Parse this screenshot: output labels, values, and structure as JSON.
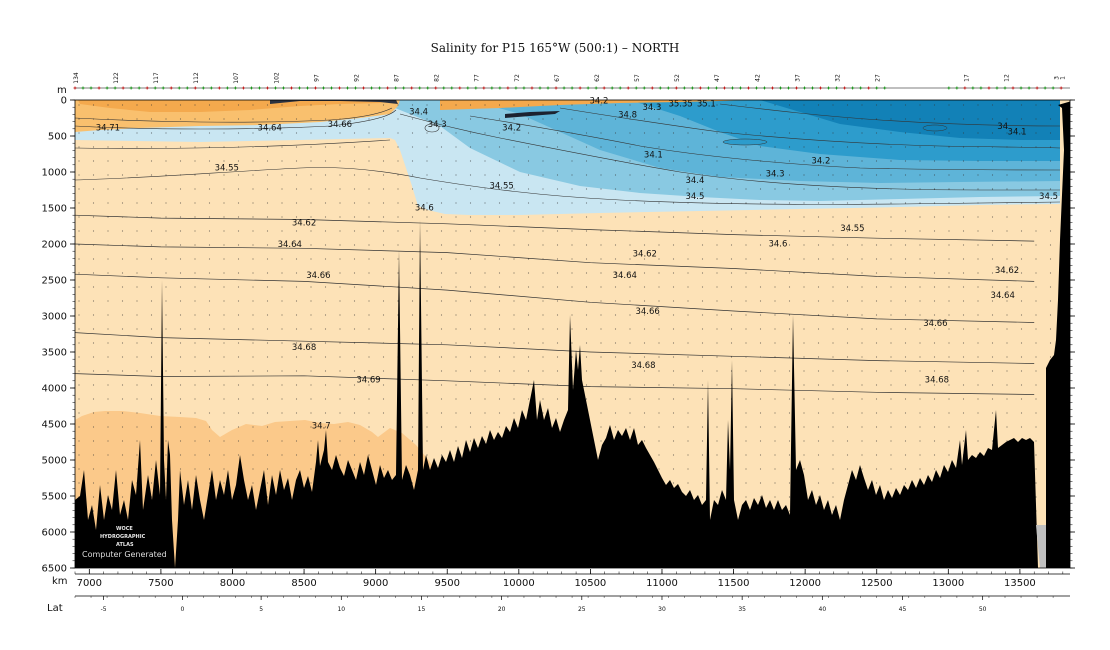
{
  "chart_data": {
    "type": "heatmap",
    "title": "Salinity for P15 165°W (500:1) – NORTH",
    "y_unit": "m",
    "x_unit": "km",
    "lat_label": "Lat",
    "xlim": [
      6900,
      13850
    ],
    "ylim": [
      0,
      6500
    ],
    "x_ticks": [
      7000,
      7500,
      8000,
      8500,
      9000,
      9500,
      10000,
      10500,
      11000,
      11500,
      12000,
      12500,
      13000,
      13500
    ],
    "y_ticks": [
      0,
      500,
      1000,
      1500,
      2000,
      2500,
      3000,
      3500,
      4000,
      4500,
      5000,
      5500,
      6000,
      6500
    ],
    "lat_ticks": [
      {
        "label": "-5",
        "km": 7100
      },
      {
        "label": "0",
        "km": 7650
      },
      {
        "label": "5",
        "km": 8200
      },
      {
        "label": "10",
        "km": 8760
      },
      {
        "label": "15",
        "km": 9320
      },
      {
        "label": "20",
        "km": 9880
      },
      {
        "label": "25",
        "km": 10440
      },
      {
        "label": "30",
        "km": 11000
      },
      {
        "label": "35",
        "km": 11560
      },
      {
        "label": "40",
        "km": 12120
      },
      {
        "label": "45",
        "km": 12680
      },
      {
        "label": "50",
        "km": 13240
      }
    ],
    "station_labels": [
      {
        "label": "134",
        "km": 6920
      },
      {
        "label": "122",
        "km": 7200
      },
      {
        "label": "117",
        "km": 7480
      },
      {
        "label": "112",
        "km": 7760
      },
      {
        "label": "107",
        "km": 8040
      },
      {
        "label": "102",
        "km": 8320
      },
      {
        "label": "97",
        "km": 8600
      },
      {
        "label": "92",
        "km": 8880
      },
      {
        "label": "87",
        "km": 9160
      },
      {
        "label": "82",
        "km": 9440
      },
      {
        "label": "77",
        "km": 9720
      },
      {
        "label": "72",
        "km": 10000
      },
      {
        "label": "67",
        "km": 10280
      },
      {
        "label": "62",
        "km": 10560
      },
      {
        "label": "57",
        "km": 10840
      },
      {
        "label": "52",
        "km": 11120
      },
      {
        "label": "47",
        "km": 11400
      },
      {
        "label": "42",
        "km": 11680
      },
      {
        "label": "37",
        "km": 11960
      },
      {
        "label": "32",
        "km": 12240
      },
      {
        "label": "27",
        "km": 12520
      },
      {
        "label": "17",
        "km": 13140
      },
      {
        "label": "12",
        "km": 13420
      },
      {
        "label": "3",
        "km": 13770
      },
      {
        "label": "1",
        "km": 13810
      }
    ],
    "layers": [
      {
        "color": "#fbc98a",
        "depth": [
          [
            6900,
            4430
          ],
          [
            7200,
            4400
          ],
          [
            7600,
            4500
          ],
          [
            8200,
            4480
          ],
          [
            8800,
            4560
          ],
          [
            9200,
            4700
          ],
          [
            9400,
            5000
          ]
        ]
      },
      {
        "color": "#f9c06e",
        "depth": [
          [
            6900,
            0
          ],
          [
            8500,
            0
          ],
          [
            9100,
            0
          ]
        ]
      },
      {
        "color": "#c9e6f2",
        "depth": [
          [
            6900,
            530
          ],
          [
            9100,
            520
          ],
          [
            9200,
            1480
          ],
          [
            13700,
            1400
          ]
        ]
      },
      {
        "color": "#89c9e2",
        "depth": [
          [
            9300,
            0
          ],
          [
            9700,
            500
          ],
          [
            13700,
            1300
          ]
        ]
      },
      {
        "color": "#5eb4d8",
        "depth": [
          [
            10300,
            0
          ],
          [
            11500,
            900
          ],
          [
            13700,
            1050
          ]
        ]
      },
      {
        "color": "#2d9ccc",
        "depth": [
          [
            11400,
            0
          ],
          [
            12300,
            600
          ],
          [
            13700,
            800
          ]
        ]
      },
      {
        "color": "#1281b7",
        "depth": [
          [
            12000,
            0
          ],
          [
            13000,
            300
          ],
          [
            13700,
            500
          ]
        ]
      }
    ],
    "contours": [
      {
        "value": 34.62,
        "points": [
          [
            6900,
            1600
          ],
          [
            7500,
            1640
          ],
          [
            8500,
            1660
          ],
          [
            9500,
            1720
          ],
          [
            10500,
            1800
          ],
          [
            11500,
            1870
          ],
          [
            12500,
            1920
          ],
          [
            13600,
            1960
          ]
        ]
      },
      {
        "value": 34.64,
        "points": [
          [
            6900,
            2000
          ],
          [
            7500,
            2040
          ],
          [
            8500,
            2060
          ],
          [
            9500,
            2120
          ],
          [
            10500,
            2260
          ],
          [
            11500,
            2340
          ],
          [
            12500,
            2450
          ],
          [
            13600,
            2520
          ]
        ]
      },
      {
        "value": 34.66,
        "points": [
          [
            6900,
            2420
          ],
          [
            7500,
            2470
          ],
          [
            8500,
            2520
          ],
          [
            9500,
            2640
          ],
          [
            10500,
            2810
          ],
          [
            11500,
            2930
          ],
          [
            12500,
            3040
          ],
          [
            13600,
            3090
          ]
        ]
      },
      {
        "value": 34.68,
        "points": [
          [
            6900,
            3230
          ],
          [
            7500,
            3300
          ],
          [
            8500,
            3350
          ],
          [
            9500,
            3400
          ],
          [
            10500,
            3500
          ],
          [
            11500,
            3560
          ],
          [
            12500,
            3620
          ],
          [
            13600,
            3660
          ]
        ]
      },
      {
        "value": 34.69,
        "points": [
          [
            6900,
            3800
          ],
          [
            7500,
            3840
          ],
          [
            8500,
            3830
          ],
          [
            9500,
            3900
          ],
          [
            10500,
            3980
          ],
          [
            11500,
            4010
          ],
          [
            12500,
            4060
          ],
          [
            13600,
            4090
          ]
        ]
      }
    ],
    "labels": [
      {
        "text": "34.71",
        "km": 7130,
        "depth": 380
      },
      {
        "text": "34.64",
        "km": 8260,
        "depth": 380
      },
      {
        "text": "34.66",
        "km": 8750,
        "depth": 330
      },
      {
        "text": "34.4",
        "km": 9300,
        "depth": 160
      },
      {
        "text": "34.3",
        "km": 9430,
        "depth": 330
      },
      {
        "text": "34.2",
        "km": 9950,
        "depth": 380
      },
      {
        "text": "34.2",
        "km": 10560,
        "depth": 10
      },
      {
        "text": "34.8",
        "km": 10760,
        "depth": 200
      },
      {
        "text": "34.3",
        "km": 10930,
        "depth": 100
      },
      {
        "text": "35.35",
        "km": 11130,
        "depth": 50
      },
      {
        "text": "35.1",
        "km": 11310,
        "depth": 50
      },
      {
        "text": "34",
        "km": 13380,
        "depth": 360
      },
      {
        "text": "34.1",
        "km": 13480,
        "depth": 440
      },
      {
        "text": "34.1",
        "km": 10940,
        "depth": 760
      },
      {
        "text": "34.2",
        "km": 12110,
        "depth": 840
      },
      {
        "text": "34.3",
        "km": 11790,
        "depth": 1020
      },
      {
        "text": "34.4",
        "km": 11230,
        "depth": 1110
      },
      {
        "text": "34.5",
        "km": 11230,
        "depth": 1330
      },
      {
        "text": "34.5",
        "km": 13700,
        "depth": 1330
      },
      {
        "text": "34.55",
        "km": 7960,
        "depth": 940
      },
      {
        "text": "34.55",
        "km": 9880,
        "depth": 1190
      },
      {
        "text": "34.55",
        "km": 12330,
        "depth": 1780
      },
      {
        "text": "34.6",
        "km": 9340,
        "depth": 1490
      },
      {
        "text": "34.6",
        "km": 11810,
        "depth": 1990
      },
      {
        "text": "34.62",
        "km": 8500,
        "depth": 1700
      },
      {
        "text": "34.62",
        "km": 10880,
        "depth": 2130
      },
      {
        "text": "34.62",
        "km": 13410,
        "depth": 2360
      },
      {
        "text": "34.64",
        "km": 8400,
        "depth": 2000
      },
      {
        "text": "34.64",
        "km": 10740,
        "depth": 2430
      },
      {
        "text": "34.64",
        "km": 13380,
        "depth": 2710
      },
      {
        "text": "34.66",
        "km": 8600,
        "depth": 2430
      },
      {
        "text": "34.66",
        "km": 10900,
        "depth": 2930
      },
      {
        "text": "34.66",
        "km": 12910,
        "depth": 3100
      },
      {
        "text": "34.68",
        "km": 8500,
        "depth": 3430
      },
      {
        "text": "34.68",
        "km": 10870,
        "depth": 3680
      },
      {
        "text": "34.68",
        "km": 12920,
        "depth": 3880
      },
      {
        "text": "34.69",
        "km": 8950,
        "depth": 3880
      },
      {
        "text": "34.7",
        "km": 8620,
        "depth": 4520
      }
    ],
    "watermark": [
      "WOCE",
      "HYDROGRAPHIC",
      "ATLAS",
      "Computer Generated"
    ]
  }
}
